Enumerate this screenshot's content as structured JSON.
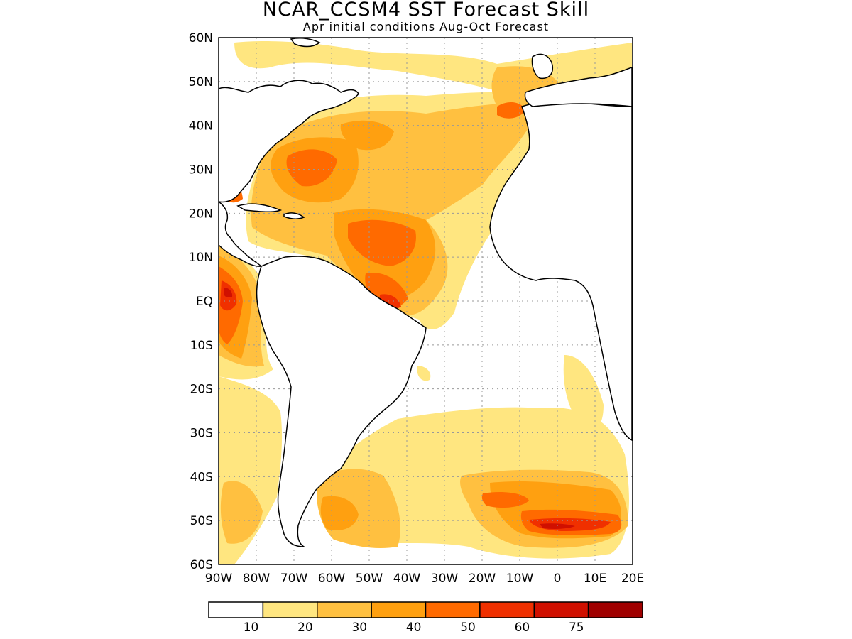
{
  "title": "NCAR_CCSM4 SST Forecast Skill",
  "subtitle": "Apr initial conditions  Aug-Oct Forecast",
  "map": {
    "lat_labels": [
      "60N",
      "50N",
      "40N",
      "30N",
      "20N",
      "10N",
      "EQ",
      "10S",
      "20S",
      "30S",
      "40S",
      "50S",
      "60S"
    ],
    "lon_labels": [
      "90W",
      "80W",
      "70W",
      "60W",
      "50W",
      "40W",
      "30W",
      "20W",
      "10W",
      "0",
      "10E",
      "20E"
    ],
    "lat_range": [
      -60,
      60
    ],
    "lon_range": [
      -90,
      20
    ],
    "grid": "dotted"
  },
  "colorbar": {
    "levels": [
      "10",
      "20",
      "30",
      "40",
      "50",
      "60",
      "75"
    ],
    "colors": [
      "#ffffff",
      "#ffe680",
      "#ffc040",
      "#ffa010",
      "#ff6a00",
      "#f03000",
      "#d01000",
      "#a00000"
    ]
  }
}
